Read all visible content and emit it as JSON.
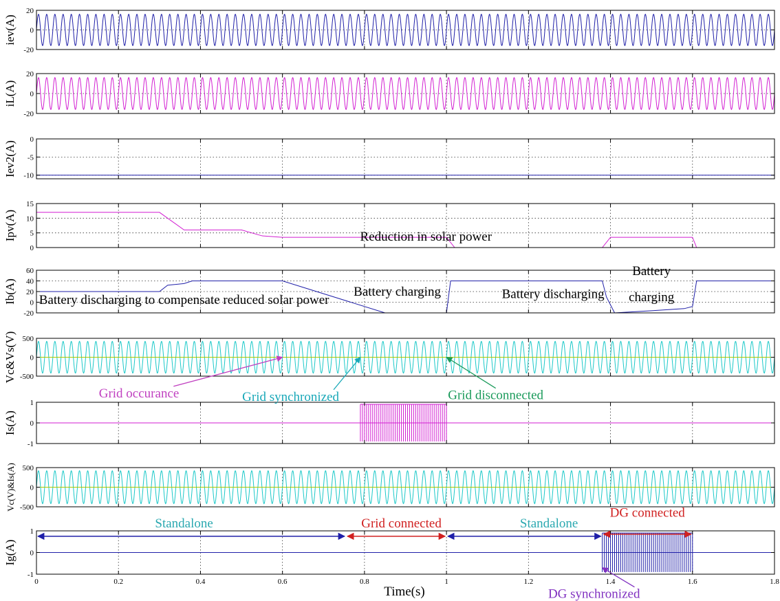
{
  "chart_data": {
    "type": "line",
    "xlabel": "Time(s)",
    "xlim": [
      0,
      1.8
    ],
    "x_ticks": [
      0,
      0.2,
      0.4,
      0.6,
      0.8,
      1,
      1.2,
      1.4,
      1.6,
      1.8
    ],
    "grid": true,
    "subplots": [
      {
        "id": "iev",
        "ylabel": "iev(A)",
        "ylim": [
          -20,
          20
        ],
        "yticks": [
          20,
          0,
          -20
        ],
        "series": [
          {
            "kind": "sine",
            "amplitude": 16,
            "frequency_hz": 50,
            "on": [
              [
                0,
                1.8
              ]
            ],
            "color": "#1f1fa8"
          }
        ]
      },
      {
        "id": "iL",
        "ylabel": "iL(A)",
        "ylim": [
          -20,
          20
        ],
        "yticks": [
          20,
          0,
          -20
        ],
        "series": [
          {
            "kind": "sine",
            "amplitude": 16,
            "frequency_hz": 50,
            "on": [
              [
                0,
                1.8
              ]
            ],
            "color": "#d21ed2"
          }
        ]
      },
      {
        "id": "iev2",
        "ylabel": "Iev2(A)",
        "ylim": [
          -11,
          0
        ],
        "yticks": [
          0,
          -5,
          -10
        ],
        "series": [
          {
            "kind": "line",
            "x": [
              0,
              1.8
            ],
            "y": [
              -10,
              -10
            ],
            "color": "#1f1fa8"
          }
        ]
      },
      {
        "id": "ipv",
        "ylabel": "Ipv(A)",
        "ylim": [
          0,
          15
        ],
        "yticks": [
          15,
          10,
          5,
          0
        ],
        "series": [
          {
            "kind": "line",
            "color": "#d21ed2",
            "x": [
              0,
              0.3,
              0.31,
              0.36,
              0.5,
              0.55,
              0.6,
              1.0,
              1.02,
              1.38,
              1.4,
              1.6,
              1.61,
              1.8
            ],
            "y": [
              12,
              12,
              11,
              6,
              6,
              4,
              3.5,
              3.5,
              0,
              0,
              3.5,
              3.5,
              0,
              0
            ]
          }
        ]
      },
      {
        "id": "ib",
        "ylabel": "Ib(A)",
        "ylim": [
          -20,
          60
        ],
        "yticks": [
          60,
          40,
          20,
          0,
          -20
        ],
        "series": [
          {
            "kind": "line",
            "color": "#1f1fa8",
            "x": [
              0,
              0.3,
              0.32,
              0.36,
              0.38,
              0.6,
              0.85,
              1.0,
              1.01,
              1.38,
              1.39,
              1.41,
              1.5,
              1.58,
              1.6,
              1.61,
              1.8
            ],
            "y": [
              20,
              20,
              32,
              35,
              40,
              40,
              -20,
              -20,
              40,
              40,
              10,
              -20,
              -16,
              -12,
              -8,
              40,
              40
            ]
          }
        ]
      },
      {
        "id": "vcvs",
        "ylabel": "Vc&Vs(V)",
        "ylim": [
          -500,
          500
        ],
        "yticks": [
          500,
          0,
          -500
        ],
        "series": [
          {
            "kind": "sine",
            "amplitude": 420,
            "frequency_hz": 50,
            "on": [
              [
                0,
                1.8
              ]
            ],
            "color": "#19c8c8"
          },
          {
            "kind": "line",
            "x": [
              0,
              1.8
            ],
            "y": [
              0,
              0
            ],
            "color": "#a8c800"
          }
        ]
      },
      {
        "id": "is",
        "ylabel": "Is(A)",
        "ylim": [
          -1,
          1
        ],
        "yticks": [
          1,
          0,
          -1
        ],
        "series": [
          {
            "kind": "line",
            "x": [
              0,
              1.8
            ],
            "y": [
              0,
              0
            ],
            "color": "#d21ed2"
          },
          {
            "kind": "burst",
            "on": [
              [
                0.79,
                1.0
              ]
            ],
            "period": 0.01,
            "amplitude": 0.9,
            "color": "#d21ed2"
          }
        ]
      },
      {
        "id": "vcis",
        "ylabel": "Vc(V)&Is(A)",
        "ylim": [
          -500,
          500
        ],
        "yticks": [
          500,
          0,
          -500
        ],
        "series": [
          {
            "kind": "sine",
            "amplitude": 420,
            "frequency_hz": 50,
            "on": [
              [
                0,
                1.8
              ]
            ],
            "color": "#19c8c8"
          },
          {
            "kind": "line",
            "x": [
              0,
              1.8
            ],
            "y": [
              0,
              0
            ],
            "color": "#a8c800"
          }
        ]
      },
      {
        "id": "ig",
        "ylabel": "Ig(A)",
        "ylim": [
          -1,
          1
        ],
        "yticks": [
          1,
          0,
          -1
        ],
        "series": [
          {
            "kind": "line",
            "x": [
              0,
              1.8
            ],
            "y": [
              0,
              0
            ],
            "color": "#1f1fa8"
          },
          {
            "kind": "burst",
            "on": [
              [
                1.38,
                1.6
              ]
            ],
            "period": 0.01,
            "amplitude": 0.9,
            "color": "#1f1fa8"
          }
        ]
      }
    ],
    "annotations": [
      {
        "panel": 3,
        "text": "Reduction in solar power",
        "x": 0.95,
        "y": 2.4,
        "color": "#000000"
      },
      {
        "panel": 4,
        "text": "Battery discharging to compensate reduced solar power",
        "x": 0.36,
        "y": -3,
        "color": "#000000"
      },
      {
        "panel": 4,
        "text": "Battery charging",
        "x": 0.88,
        "y": 12,
        "color": "#000000"
      },
      {
        "panel": 4,
        "text": "Battery discharging",
        "x": 1.26,
        "y": 8,
        "color": "#000000"
      },
      {
        "panel": 4,
        "text": "Battery",
        "x": 1.5,
        "y": 51,
        "color": "#000000"
      },
      {
        "panel": 4,
        "text": "charging",
        "x": 1.5,
        "y": 2,
        "color": "#000000"
      },
      {
        "panel": 5,
        "text": "Grid occurance",
        "x": 0.25,
        "y": -1060,
        "color": "#c040c0",
        "arrow_to": [
          0.6,
          0
        ]
      },
      {
        "panel": 5,
        "text": "Grid synchronized",
        "x": 0.62,
        "y": -1150,
        "color": "#19a8b8",
        "arrow_to": [
          0.79,
          0
        ]
      },
      {
        "panel": 5,
        "text": "Grid disconnected",
        "x": 1.12,
        "y": -1110,
        "color": "#1a9a5a",
        "arrow_to": [
          1.0,
          0
        ]
      },
      {
        "panel": 7,
        "text": "Standalone",
        "x": 0.36,
        "y": -1030,
        "color": "#2aa8b0"
      },
      {
        "panel": 7,
        "text": "Grid connected",
        "x": 0.89,
        "y": -1030,
        "color": "#d02020"
      },
      {
        "panel": 7,
        "text": "Standalone",
        "x": 1.25,
        "y": -1030,
        "color": "#2aa8b0"
      },
      {
        "panel": 8,
        "text": "DG connected",
        "x": 1.49,
        "y": 1.65,
        "color": "#d02020"
      },
      {
        "panel": 8,
        "text": "DG synchronized",
        "x": 1.36,
        "y": -2.1,
        "color": "#8030c0",
        "arrow_to": [
          1.38,
          -0.7
        ]
      }
    ],
    "spans": [
      {
        "panel": 8,
        "from": 0,
        "to": 0.755,
        "y": 0.75,
        "color": "#1f1fa8"
      },
      {
        "panel": 8,
        "from": 0.755,
        "to": 1.0,
        "y": 0.75,
        "color": "#d02020"
      },
      {
        "panel": 8,
        "from": 1.0,
        "to": 1.38,
        "y": 0.75,
        "color": "#1f1fa8"
      },
      {
        "panel": 7,
        "from": 1.38,
        "to": 1.6,
        "y": -1200,
        "color": "#d02020"
      }
    ]
  }
}
